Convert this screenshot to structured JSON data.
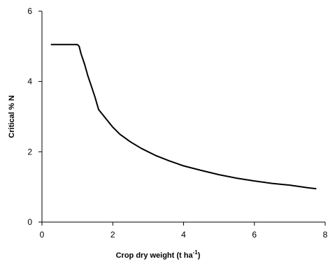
{
  "chart_data": {
    "type": "line",
    "title": "",
    "xlabel": "Crop dry weight (t ha",
    "xlabel_superscript": "-1",
    "xlabel_suffix": ")",
    "ylabel": "Critical % N",
    "xlim": [
      0,
      8
    ],
    "ylim": [
      0,
      6
    ],
    "x_ticks": [
      0,
      2,
      4,
      6,
      8
    ],
    "y_ticks": [
      0,
      2,
      4,
      6
    ],
    "x_tick_labels": [
      "0",
      "2",
      "4",
      "6",
      "8"
    ],
    "y_tick_labels": [
      "0",
      "2",
      "4",
      "6"
    ],
    "grid": false,
    "legend": "none",
    "line_color": "#000000",
    "series": [
      {
        "x": [
          0.25,
          0.5,
          0.75,
          1.0,
          1.05,
          1.1,
          1.2,
          1.3,
          1.4,
          1.5,
          1.6,
          1.8,
          2.0,
          2.2,
          2.5,
          2.8,
          3.2,
          3.6,
          4.0,
          4.5,
          5.0,
          5.5,
          6.0,
          6.5,
          7.0,
          7.5,
          7.75
        ],
        "y": [
          5.05,
          5.05,
          5.05,
          5.05,
          5.0,
          4.8,
          4.5,
          4.15,
          3.85,
          3.55,
          3.2,
          2.95,
          2.7,
          2.5,
          2.28,
          2.1,
          1.9,
          1.74,
          1.6,
          1.47,
          1.35,
          1.25,
          1.17,
          1.1,
          1.05,
          0.98,
          0.95
        ]
      }
    ]
  }
}
